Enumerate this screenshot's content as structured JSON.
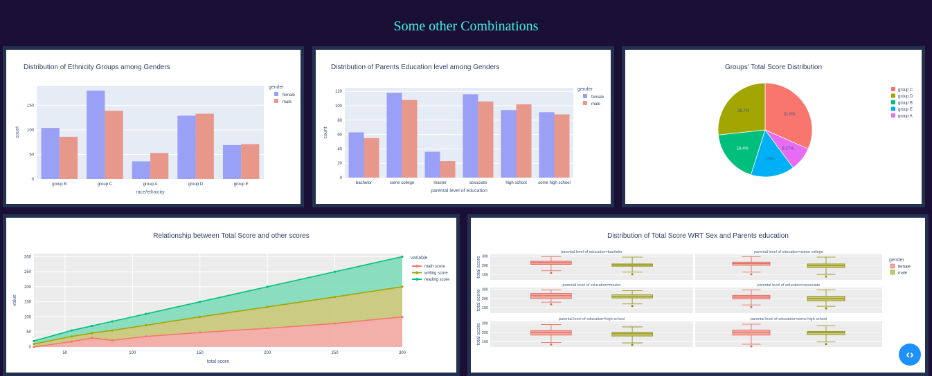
{
  "page": {
    "title": "Some other Combinations"
  },
  "charts": {
    "ethnicity": {
      "title": "Distribution of Ethnicity Groups among Genders"
    },
    "education": {
      "title": "Distribution of Parents Education level among Genders"
    },
    "pie": {
      "title": "Groups' Total Score Distribution"
    },
    "relationship": {
      "title": "Relationship between Total Score and other scores"
    },
    "boxes": {
      "title": "Distribution of Total Score WRT Sex and Parents education"
    }
  },
  "chart_data": [
    {
      "id": "ethnicity",
      "type": "bar",
      "title": "Distribution of Ethnicity Groups among Genders",
      "xlabel": "race/ethnicity",
      "ylabel": "count",
      "legend_title": "gender",
      "legend_position": "top-right",
      "categories": [
        "group B",
        "group C",
        "group A",
        "group D",
        "group E"
      ],
      "series": [
        {
          "name": "female",
          "values": [
            104,
            180,
            36,
            129,
            69
          ],
          "color": "#9aa0f5"
        },
        {
          "name": "male",
          "values": [
            86,
            139,
            53,
            133,
            71
          ],
          "color": "#e8988a"
        }
      ],
      "ylim": [
        0,
        190
      ],
      "yticks": [
        0,
        50,
        100,
        150
      ],
      "grid": true
    },
    {
      "id": "education",
      "type": "bar",
      "title": "Distribution of Parents Education level among Genders",
      "xlabel": "parental level of education",
      "ylabel": "count",
      "legend_title": "gender",
      "legend_position": "top-right",
      "categories": [
        "bachelor",
        "some college",
        "master",
        "associate",
        "high school",
        "some high school"
      ],
      "series": [
        {
          "name": "female",
          "values": [
            63,
            118,
            36,
            116,
            94,
            91
          ],
          "color": "#9aa0f5"
        },
        {
          "name": "male",
          "values": [
            55,
            108,
            23,
            106,
            102,
            88
          ],
          "color": "#e8988a"
        }
      ],
      "ylim": [
        0,
        125
      ],
      "yticks": [
        0,
        20,
        40,
        60,
        80,
        100,
        120
      ],
      "grid": true
    },
    {
      "id": "pie",
      "type": "pie",
      "title": "Groups' Total Score Distribution",
      "legend_position": "right",
      "slices": [
        {
          "label": "group C",
          "value": 31.6,
          "text": "31.6%",
          "color": "#f8766d"
        },
        {
          "label": "group A",
          "value": 8.27,
          "text": "8.27%",
          "color": "#e76bf3"
        },
        {
          "label": "group E",
          "value": 15,
          "text": "15%",
          "color": "#00b0f6"
        },
        {
          "label": "group B",
          "value": 18.4,
          "text": "18.4%",
          "color": "#00bf7d"
        },
        {
          "label": "group D",
          "value": 26.7,
          "text": "26.7%",
          "color": "#a3a500"
        }
      ],
      "legend": [
        "group C",
        "group D",
        "group B",
        "group E",
        "group A"
      ]
    },
    {
      "id": "relationship",
      "type": "area",
      "title": "Relationship between Total Score and other scores",
      "xlabel": "total score",
      "ylabel": "value",
      "legend_title": "variable",
      "legend_position": "top-right",
      "xlim": [
        27,
        300
      ],
      "ylim": [
        0,
        310
      ],
      "xticks": [
        50,
        100,
        150,
        200,
        250,
        300
      ],
      "yticks": [
        0,
        50,
        100,
        150,
        200,
        250,
        300
      ],
      "x": [
        27,
        55,
        70,
        85,
        110,
        150,
        200,
        250,
        300
      ],
      "series": [
        {
          "name": "math score",
          "color": "#f8766d",
          "fill": "#f4a8a2",
          "values": [
            0,
            18,
            30,
            22,
            35,
            48,
            62,
            78,
            100
          ]
        },
        {
          "name": "writing score",
          "color": "#a3a500",
          "fill": "#c8c878",
          "values": [
            10,
            35,
            46,
            55,
            72,
            100,
            133,
            166,
            200
          ]
        },
        {
          "name": "reading score",
          "color": "#00bf7d",
          "fill": "#7fdcba",
          "values": [
            20,
            55,
            70,
            85,
            110,
            150,
            200,
            250,
            300
          ]
        }
      ],
      "grid": true
    },
    {
      "id": "boxes",
      "type": "box",
      "title": "Distribution of Total Score WRT Sex and Parents education",
      "ylabel": "total score",
      "legend_title": "gender",
      "legend_position": "top-right",
      "yticks": [
        100,
        200,
        300
      ],
      "ylim": [
        40,
        320
      ],
      "groups": [
        "female",
        "male"
      ],
      "group_colors": [
        "#f4a8a2",
        "#c8c878"
      ],
      "facets": [
        {
          "label": "parental level of education=bachelor",
          "female": [
            140,
            210,
            230,
            245,
            295
          ],
          "male": [
            125,
            190,
            205,
            215,
            290
          ]
        },
        {
          "label": "parental level of education=some college",
          "female": [
            125,
            200,
            218,
            235,
            295
          ],
          "male": [
            100,
            175,
            195,
            215,
            290
          ]
        },
        {
          "label": "parental level of education=master",
          "female": [
            160,
            200,
            230,
            255,
            295
          ],
          "male": [
            140,
            205,
            220,
            240,
            285
          ]
        },
        {
          "label": "parental level of education=associate",
          "female": [
            130,
            195,
            215,
            235,
            295
          ],
          "male": [
            115,
            175,
            200,
            225,
            295
          ]
        },
        {
          "label": "parental level of education=high school",
          "female": [
            90,
            170,
            195,
            220,
            285
          ],
          "male": [
            85,
            160,
            185,
            200,
            260
          ]
        },
        {
          "label": "parental level of education=some high school",
          "female": [
            70,
            170,
            200,
            225,
            290
          ],
          "male": [
            95,
            175,
            195,
            210,
            270
          ]
        }
      ]
    }
  ]
}
